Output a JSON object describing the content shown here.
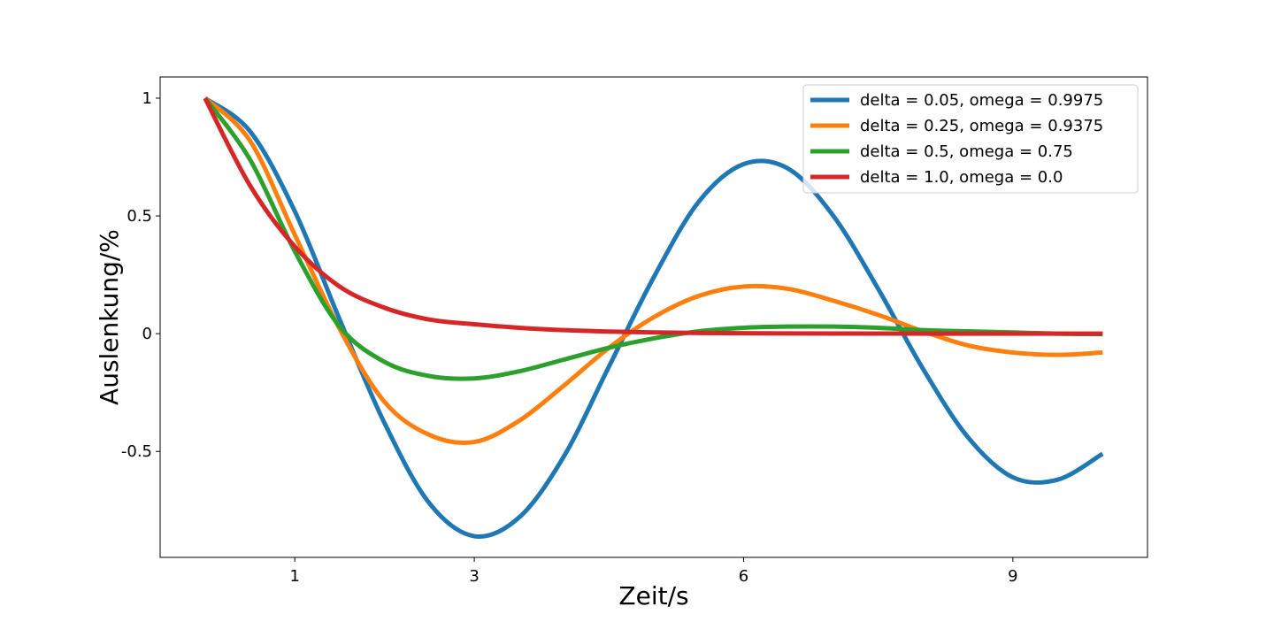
{
  "chart_data": {
    "type": "line",
    "title": "",
    "xlabel": "Zeit/s",
    "ylabel": "Auslenkung/%",
    "xlim": [
      -0.5,
      10.5
    ],
    "ylim": [
      -0.95,
      1.09
    ],
    "xticks": [
      1,
      3,
      6,
      9
    ],
    "xtick_labels": [
      "1",
      "3",
      "6",
      "9"
    ],
    "yticks": [
      1,
      0.5,
      0,
      -0.5
    ],
    "ytick_labels": [
      "1",
      "0.5",
      "0",
      "-0.5"
    ],
    "grid": false,
    "legend_position": "top-right",
    "series": [
      {
        "name": "delta = 0.05, omega = 0.9975",
        "color": "#1f77b4",
        "x": [
          0,
          0.5,
          1,
          1.5,
          2,
          2.5,
          3,
          3.5,
          4,
          4.5,
          5,
          5.5,
          6,
          6.5,
          7,
          7.5,
          8,
          8.5,
          9,
          9.5,
          10
        ],
        "y": [
          1,
          0.86,
          0.52,
          0.06,
          -0.38,
          -0.72,
          -0.86,
          -0.78,
          -0.52,
          -0.14,
          0.24,
          0.56,
          0.72,
          0.7,
          0.5,
          0.19,
          -0.15,
          -0.44,
          -0.61,
          -0.62,
          -0.51
        ]
      },
      {
        "name": "delta = 0.25, omega = 0.9375",
        "color": "#ff7f0e",
        "x": [
          0,
          0.5,
          1,
          1.5,
          2,
          2.5,
          3,
          3.5,
          4,
          4.5,
          5,
          5.5,
          6,
          6.5,
          7,
          7.5,
          8,
          8.5,
          9,
          9.5,
          10
        ],
        "y": [
          1,
          0.82,
          0.42,
          0.02,
          -0.29,
          -0.43,
          -0.46,
          -0.37,
          -0.22,
          -0.06,
          0.07,
          0.16,
          0.2,
          0.19,
          0.14,
          0.08,
          0.01,
          -0.05,
          -0.08,
          -0.09,
          -0.08
        ]
      },
      {
        "name": "delta = 0.5, omega = 0.75",
        "color": "#2ca02c",
        "x": [
          0,
          0.5,
          1,
          1.5,
          2,
          2.5,
          3,
          3.5,
          4,
          4.5,
          5,
          5.5,
          6,
          6.5,
          7,
          7.5,
          8,
          8.5,
          9,
          9.5,
          10
        ],
        "y": [
          1,
          0.74,
          0.35,
          0.03,
          -0.12,
          -0.18,
          -0.19,
          -0.16,
          -0.11,
          -0.06,
          -0.02,
          0.01,
          0.025,
          0.03,
          0.03,
          0.025,
          0.015,
          0.01,
          0.005,
          0.0,
          -0.002
        ]
      },
      {
        "name": "delta = 1.0, omega = 0.0",
        "color": "#d62728",
        "x": [
          0,
          0.5,
          1,
          1.5,
          2,
          2.5,
          3,
          3.5,
          4,
          4.5,
          5,
          5.5,
          6,
          6.5,
          7,
          7.5,
          8,
          8.5,
          9,
          9.5,
          10
        ],
        "y": [
          1,
          0.63,
          0.37,
          0.2,
          0.11,
          0.06,
          0.04,
          0.025,
          0.015,
          0.009,
          0.005,
          0.003,
          0.002,
          0.001,
          0.0006,
          0.0004,
          0.0002,
          0.0001,
          0.0,
          0.0,
          0.0
        ]
      }
    ]
  }
}
